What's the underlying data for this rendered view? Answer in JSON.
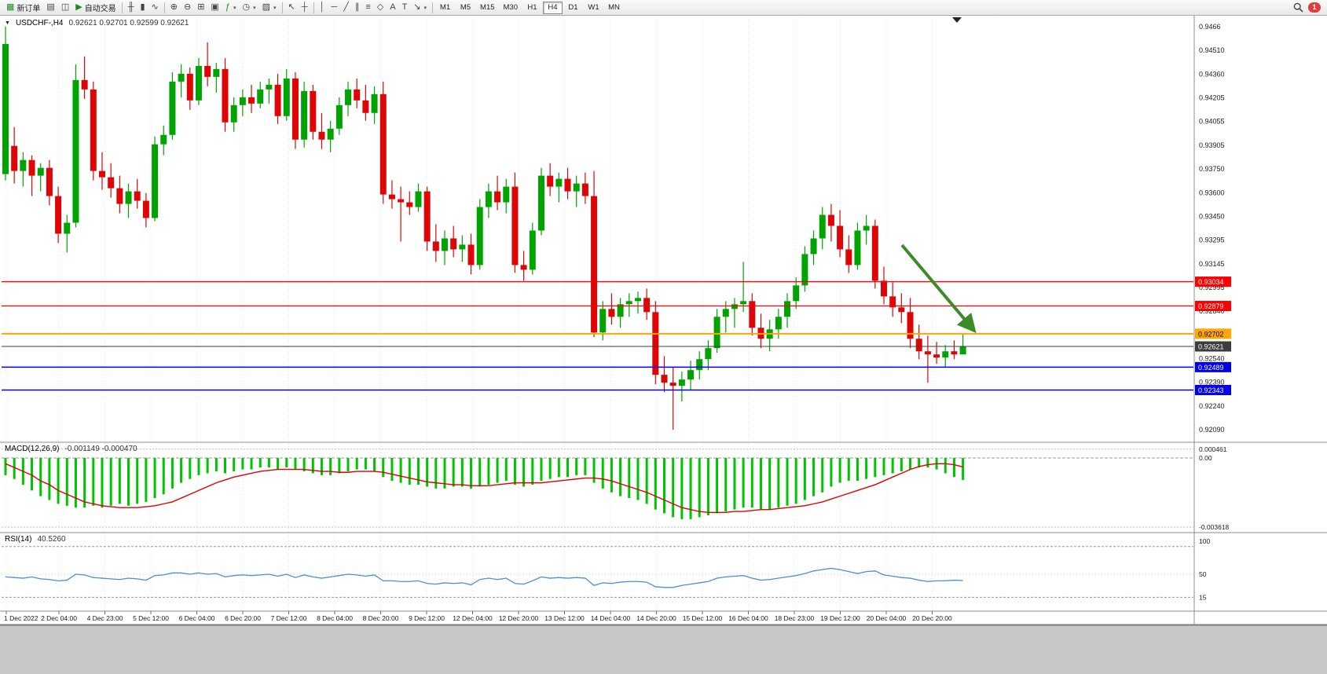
{
  "colors": {
    "bull": "#00a400",
    "bear": "#dd0505",
    "macd_hist": "#00c400",
    "macd_signal": "#e00000",
    "rsi_line": "#4a90d2",
    "arrow": "#3c8a28",
    "grid": "#e3e3e3",
    "separator": "#8c8c8c",
    "axis_text": "#1a1a1a"
  },
  "toolbar": {
    "new_order_label": "新订单",
    "auto_trading_label": "自动交易",
    "timeframes": [
      "M1",
      "M5",
      "M15",
      "M30",
      "H1",
      "H4",
      "D1",
      "W1",
      "MN"
    ],
    "active_timeframe": "H4",
    "notification_count": "1",
    "icons": {
      "new_order": "▦",
      "chart_window": "▤",
      "profiles": "◫",
      "play": "▶",
      "bars": "╫",
      "candles": "▮",
      "line": "∿",
      "zoom_in": "⊕",
      "zoom_out": "⊖",
      "tile": "⊞",
      "cascade": "▣",
      "indicators": "ƒ",
      "periods": "◷",
      "templates": "▨",
      "cursor": "↖",
      "crosshair": "┼",
      "vline": "│",
      "hline": "─",
      "trendline": "╱",
      "channel": "∥",
      "fibonacci": "≡",
      "shapes": "◇",
      "text": "A",
      "label": "T",
      "arrows": "↘",
      "caret": "▾",
      "triangle": "▼"
    }
  },
  "chart": {
    "symbol_period": "USDCHF-,H4",
    "ohlc_text": "0.92621 0.92701 0.92599 0.92621",
    "price_axis": [
      "0.9466",
      "0.94510",
      "0.94360",
      "0.94205",
      "0.94055",
      "0.93905",
      "0.93750",
      "0.93600",
      "0.93450",
      "0.93295",
      "0.93145",
      "0.92995",
      "0.92840",
      "0.92690",
      "0.92540",
      "0.92390",
      "0.92240",
      "0.92090"
    ],
    "levels": [
      {
        "name": "resistance-line-1",
        "price": 0.93034,
        "label": "0.93034",
        "color": "#ff0000",
        "text": "#ffffff",
        "width": 1.3
      },
      {
        "name": "resistance-line-2",
        "price": 0.92879,
        "label": "0.92879",
        "color": "#ff0000",
        "text": "#ffffff",
        "width": 1.3
      },
      {
        "name": "pivot-line-orange",
        "price": 0.92702,
        "label": "0.92702",
        "color": "#ffa600",
        "text": "#000000",
        "width": 2
      },
      {
        "name": "current-price-line",
        "price": 0.92621,
        "label": "0.92621",
        "color": "#3d3d3d",
        "text": "#ffffff",
        "width": 1
      },
      {
        "name": "support-line-1",
        "price": 0.92489,
        "label": "0.92489",
        "color": "#0000ee",
        "text": "#ffffff",
        "width": 1.5
      },
      {
        "name": "support-line-2",
        "price": 0.92343,
        "label": "0.92343",
        "color": "#0000ee",
        "text": "#ffffff",
        "width": 1.5
      }
    ],
    "time_axis": [
      "1 Dec 2022",
      "2 Dec 04:00",
      "4 Dec 23:00",
      "5 Dec 12:00",
      "6 Dec 04:00",
      "6 Dec 20:00",
      "7 Dec 12:00",
      "8 Dec 04:00",
      "8 Dec 20:00",
      "9 Dec 12:00",
      "12 Dec 04:00",
      "12 Dec 20:00",
      "13 Dec 12:00",
      "14 Dec 04:00",
      "14 Dec 20:00",
      "15 Dec 12:00",
      "16 Dec 04:00",
      "18 Dec 23:00",
      "19 Dec 12:00",
      "20 Dec 04:00",
      "20 Dec 20:00"
    ]
  },
  "macd": {
    "label": "MACD(12,26,9)",
    "values_text": "-0.001149 -0.000470",
    "axis": [
      "0.000461",
      "0.00",
      "-0.003618"
    ]
  },
  "rsi": {
    "label": "RSI(14)",
    "value_text": "40.5260",
    "axis": [
      "100",
      "50",
      "15"
    ]
  },
  "chart_data": {
    "type": "candlestick",
    "symbol": "USDCHF",
    "timeframe": "H4",
    "price_range": [
      0.9209,
      0.9466
    ],
    "candles": [
      [
        0.9372,
        0.9466,
        0.9368,
        0.9455
      ],
      [
        0.939,
        0.9402,
        0.9366,
        0.9374
      ],
      [
        0.9374,
        0.9386,
        0.9364,
        0.9381
      ],
      [
        0.9381,
        0.9384,
        0.9358,
        0.9371
      ],
      [
        0.9371,
        0.9379,
        0.9361,
        0.9376
      ],
      [
        0.9376,
        0.9381,
        0.9352,
        0.9358
      ],
      [
        0.9358,
        0.9364,
        0.9328,
        0.9334
      ],
      [
        0.9334,
        0.9346,
        0.9322,
        0.9341
      ],
      [
        0.9341,
        0.9442,
        0.9338,
        0.9432
      ],
      [
        0.9432,
        0.9447,
        0.942,
        0.9426
      ],
      [
        0.9426,
        0.9431,
        0.9368,
        0.9374
      ],
      [
        0.9374,
        0.9386,
        0.9362,
        0.937
      ],
      [
        0.937,
        0.9379,
        0.9357,
        0.9363
      ],
      [
        0.9363,
        0.9371,
        0.9347,
        0.9353
      ],
      [
        0.9353,
        0.9366,
        0.9344,
        0.9361
      ],
      [
        0.9361,
        0.9369,
        0.935,
        0.9355
      ],
      [
        0.9355,
        0.936,
        0.9338,
        0.9344
      ],
      [
        0.9344,
        0.9396,
        0.9342,
        0.9391
      ],
      [
        0.9391,
        0.9403,
        0.9384,
        0.9397
      ],
      [
        0.9397,
        0.9437,
        0.9394,
        0.9431
      ],
      [
        0.9431,
        0.9442,
        0.9421,
        0.9436
      ],
      [
        0.9436,
        0.944,
        0.9413,
        0.9419
      ],
      [
        0.9419,
        0.9446,
        0.9416,
        0.9441
      ],
      [
        0.9441,
        0.9456,
        0.9428,
        0.9434
      ],
      [
        0.9434,
        0.9443,
        0.9424,
        0.9439
      ],
      [
        0.9439,
        0.9446,
        0.9399,
        0.9405
      ],
      [
        0.9405,
        0.9421,
        0.9399,
        0.9416
      ],
      [
        0.9416,
        0.9426,
        0.9409,
        0.9421
      ],
      [
        0.9421,
        0.9429,
        0.9411,
        0.9417
      ],
      [
        0.9417,
        0.9431,
        0.9414,
        0.9426
      ],
      [
        0.9426,
        0.9433,
        0.9417,
        0.9429
      ],
      [
        0.9429,
        0.9436,
        0.9404,
        0.9409
      ],
      [
        0.9409,
        0.9439,
        0.9406,
        0.9433
      ],
      [
        0.9433,
        0.9437,
        0.9388,
        0.9394
      ],
      [
        0.9394,
        0.9431,
        0.9389,
        0.9425
      ],
      [
        0.9425,
        0.9429,
        0.9394,
        0.9399
      ],
      [
        0.9399,
        0.9411,
        0.9388,
        0.9394
      ],
      [
        0.9394,
        0.9406,
        0.9386,
        0.9401
      ],
      [
        0.9401,
        0.9421,
        0.9397,
        0.9416
      ],
      [
        0.9416,
        0.9431,
        0.9409,
        0.9426
      ],
      [
        0.9426,
        0.9433,
        0.9414,
        0.9419
      ],
      [
        0.9419,
        0.9429,
        0.9406,
        0.9411
      ],
      [
        0.9411,
        0.9428,
        0.9404,
        0.9423
      ],
      [
        0.9423,
        0.9431,
        0.9353,
        0.9359
      ],
      [
        0.9359,
        0.9368,
        0.935,
        0.9356
      ],
      [
        0.9356,
        0.9364,
        0.9329,
        0.9354
      ],
      [
        0.9354,
        0.9361,
        0.9346,
        0.9351
      ],
      [
        0.9351,
        0.9366,
        0.9348,
        0.9361
      ],
      [
        0.9361,
        0.9364,
        0.9323,
        0.9329
      ],
      [
        0.9329,
        0.934,
        0.9316,
        0.9323
      ],
      [
        0.9323,
        0.9336,
        0.9314,
        0.9331
      ],
      [
        0.9331,
        0.9339,
        0.9319,
        0.9324
      ],
      [
        0.9324,
        0.9333,
        0.9316,
        0.9327
      ],
      [
        0.9327,
        0.9334,
        0.9308,
        0.9314
      ],
      [
        0.9314,
        0.9356,
        0.9311,
        0.9351
      ],
      [
        0.9351,
        0.9366,
        0.9344,
        0.9361
      ],
      [
        0.9361,
        0.9371,
        0.9349,
        0.9354
      ],
      [
        0.9354,
        0.9369,
        0.9347,
        0.9364
      ],
      [
        0.9364,
        0.9373,
        0.9309,
        0.9314
      ],
      [
        0.9314,
        0.9323,
        0.9304,
        0.9311
      ],
      [
        0.9311,
        0.9341,
        0.9308,
        0.9336
      ],
      [
        0.9336,
        0.9376,
        0.9333,
        0.9371
      ],
      [
        0.9371,
        0.9379,
        0.9358,
        0.9364
      ],
      [
        0.9364,
        0.9373,
        0.9354,
        0.9369
      ],
      [
        0.9369,
        0.9376,
        0.9356,
        0.9361
      ],
      [
        0.9361,
        0.9371,
        0.9351,
        0.9366
      ],
      [
        0.9366,
        0.9373,
        0.9353,
        0.9358
      ],
      [
        0.9358,
        0.9374,
        0.9268,
        0.9271
      ],
      [
        0.9271,
        0.9291,
        0.9266,
        0.9286
      ],
      [
        0.9286,
        0.9296,
        0.9276,
        0.9281
      ],
      [
        0.9281,
        0.9293,
        0.9274,
        0.9289
      ],
      [
        0.9289,
        0.9296,
        0.9281,
        0.9291
      ],
      [
        0.9291,
        0.9297,
        0.9283,
        0.9293
      ],
      [
        0.9293,
        0.9299,
        0.9279,
        0.9284
      ],
      [
        0.9284,
        0.9291,
        0.9238,
        0.9244
      ],
      [
        0.9244,
        0.9256,
        0.9233,
        0.9239
      ],
      [
        0.9239,
        0.9249,
        0.9209,
        0.9237
      ],
      [
        0.9237,
        0.9246,
        0.9227,
        0.9241
      ],
      [
        0.9241,
        0.9253,
        0.9234,
        0.9247
      ],
      [
        0.9247,
        0.9259,
        0.9241,
        0.9254
      ],
      [
        0.9254,
        0.9266,
        0.9247,
        0.9261
      ],
      [
        0.9261,
        0.9286,
        0.9258,
        0.9281
      ],
      [
        0.9281,
        0.9291,
        0.9271,
        0.9286
      ],
      [
        0.9286,
        0.9293,
        0.9274,
        0.9289
      ],
      [
        0.9289,
        0.9316,
        0.9284,
        0.9291
      ],
      [
        0.9291,
        0.9296,
        0.9269,
        0.9274
      ],
      [
        0.9274,
        0.9283,
        0.9261,
        0.9267
      ],
      [
        0.9267,
        0.9279,
        0.9259,
        0.9273
      ],
      [
        0.9273,
        0.9286,
        0.9267,
        0.9281
      ],
      [
        0.9281,
        0.9296,
        0.9274,
        0.9291
      ],
      [
        0.9291,
        0.9306,
        0.9286,
        0.9301
      ],
      [
        0.9301,
        0.9326,
        0.9297,
        0.9321
      ],
      [
        0.9321,
        0.9336,
        0.9314,
        0.9331
      ],
      [
        0.9331,
        0.9351,
        0.9324,
        0.9346
      ],
      [
        0.9346,
        0.9353,
        0.9329,
        0.9339
      ],
      [
        0.9339,
        0.9349,
        0.9319,
        0.9324
      ],
      [
        0.9324,
        0.9333,
        0.9309,
        0.9314
      ],
      [
        0.9314,
        0.9341,
        0.9311,
        0.9336
      ],
      [
        0.9336,
        0.9346,
        0.9327,
        0.9339
      ],
      [
        0.9339,
        0.9343,
        0.9299,
        0.9304
      ],
      [
        0.9304,
        0.9313,
        0.9289,
        0.9294
      ],
      [
        0.9294,
        0.9303,
        0.9281,
        0.9287
      ],
      [
        0.9287,
        0.9296,
        0.9277,
        0.9284
      ],
      [
        0.9284,
        0.9293,
        0.9261,
        0.9267
      ],
      [
        0.9267,
        0.9276,
        0.9254,
        0.9259
      ],
      [
        0.9259,
        0.9269,
        0.9239,
        0.9257
      ],
      [
        0.9257,
        0.9265,
        0.9251,
        0.9255
      ],
      [
        0.9255,
        0.9263,
        0.9249,
        0.9259
      ],
      [
        0.9259,
        0.9266,
        0.9254,
        0.9257
      ],
      [
        0.9257,
        0.92701,
        0.92599,
        0.92621
      ]
    ],
    "macd_hist_x1000": [
      -0.9,
      -1.1,
      -1.4,
      -1.7,
      -2.0,
      -2.2,
      -2.4,
      -2.5,
      -2.6,
      -2.6,
      -2.5,
      -2.6,
      -2.5,
      -2.4,
      -2.5,
      -2.4,
      -2.3,
      -2.1,
      -1.9,
      -1.6,
      -1.3,
      -1.1,
      -0.9,
      -0.8,
      -0.7,
      -0.8,
      -0.7,
      -0.6,
      -0.6,
      -0.5,
      -0.5,
      -0.6,
      -0.5,
      -0.6,
      -0.7,
      -0.8,
      -0.9,
      -0.9,
      -0.8,
      -0.7,
      -0.6,
      -0.6,
      -0.7,
      -1.0,
      -1.2,
      -1.3,
      -1.4,
      -1.4,
      -1.5,
      -1.6,
      -1.6,
      -1.5,
      -1.5,
      -1.6,
      -1.5,
      -1.4,
      -1.3,
      -1.2,
      -1.4,
      -1.5,
      -1.4,
      -1.2,
      -1.1,
      -1.0,
      -1.0,
      -0.9,
      -0.9,
      -1.3,
      -1.6,
      -1.8,
      -2.0,
      -2.1,
      -2.2,
      -2.4,
      -2.7,
      -2.9,
      -3.1,
      -3.2,
      -3.2,
      -3.1,
      -3.0,
      -2.9,
      -2.8,
      -2.7,
      -2.6,
      -2.6,
      -2.7,
      -2.7,
      -2.6,
      -2.5,
      -2.4,
      -2.2,
      -2.0,
      -1.8,
      -1.5,
      -1.3,
      -1.2,
      -1.2,
      -1.1,
      -1.0,
      -0.9,
      -0.8,
      -0.7,
      -0.6,
      -0.5,
      -0.5,
      -0.6,
      -0.8,
      -1.0,
      -1.149
    ],
    "macd_signal_x1000": [
      -0.3,
      -0.5,
      -0.7,
      -0.9,
      -1.2,
      -1.4,
      -1.7,
      -1.9,
      -2.1,
      -2.3,
      -2.4,
      -2.5,
      -2.55,
      -2.6,
      -2.6,
      -2.6,
      -2.55,
      -2.5,
      -2.4,
      -2.3,
      -2.1,
      -1.9,
      -1.7,
      -1.5,
      -1.3,
      -1.15,
      -1.0,
      -0.9,
      -0.8,
      -0.7,
      -0.65,
      -0.6,
      -0.6,
      -0.6,
      -0.6,
      -0.65,
      -0.7,
      -0.7,
      -0.75,
      -0.75,
      -0.7,
      -0.7,
      -0.7,
      -0.75,
      -0.85,
      -0.95,
      -1.05,
      -1.15,
      -1.25,
      -1.3,
      -1.35,
      -1.4,
      -1.4,
      -1.45,
      -1.45,
      -1.45,
      -1.4,
      -1.35,
      -1.3,
      -1.3,
      -1.3,
      -1.3,
      -1.25,
      -1.2,
      -1.15,
      -1.1,
      -1.05,
      -1.05,
      -1.1,
      -1.2,
      -1.35,
      -1.5,
      -1.65,
      -1.8,
      -2.0,
      -2.2,
      -2.4,
      -2.6,
      -2.7,
      -2.8,
      -2.85,
      -2.85,
      -2.85,
      -2.8,
      -2.8,
      -2.75,
      -2.7,
      -2.7,
      -2.65,
      -2.6,
      -2.55,
      -2.5,
      -2.4,
      -2.3,
      -2.15,
      -2.0,
      -1.85,
      -1.7,
      -1.55,
      -1.4,
      -1.2,
      -1.0,
      -0.8,
      -0.6,
      -0.45,
      -0.35,
      -0.3,
      -0.3,
      -0.35,
      -0.47
    ],
    "rsi": [
      46,
      45,
      44,
      46,
      43,
      42,
      40,
      41,
      50,
      49,
      45,
      44,
      43,
      42,
      44,
      43,
      41,
      48,
      49,
      52,
      52,
      50,
      52,
      50,
      51,
      46,
      48,
      49,
      48,
      49,
      50,
      47,
      50,
      45,
      49,
      46,
      44,
      46,
      48,
      50,
      49,
      47,
      49,
      40,
      40,
      39,
      39,
      40,
      36,
      35,
      37,
      36,
      37,
      34,
      42,
      44,
      42,
      44,
      36,
      35,
      40,
      46,
      44,
      45,
      44,
      45,
      44,
      33,
      37,
      36,
      38,
      39,
      39,
      38,
      31,
      30,
      30,
      33,
      35,
      37,
      39,
      44,
      46,
      47,
      48,
      44,
      41,
      42,
      44,
      46,
      48,
      51,
      55,
      57,
      59,
      57,
      54,
      51,
      54,
      55,
      49,
      47,
      45,
      44,
      41,
      39,
      40,
      40,
      41,
      40.5
    ]
  }
}
